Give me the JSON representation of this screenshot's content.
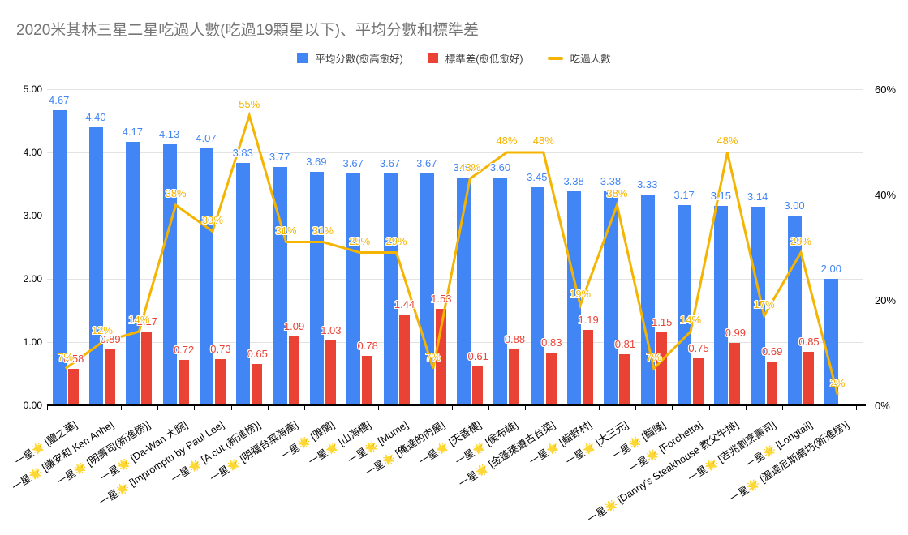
{
  "title": "2020米其林三星二星吃過人數(吃過19顆星以下)、平均分數和標準差",
  "legend": {
    "items": [
      {
        "label": "平均分數(愈高愈好)",
        "color": "#4285F4",
        "swatch": "square"
      },
      {
        "label": "標準差(愈低愈好)",
        "color": "#EA4335",
        "swatch": "square"
      },
      {
        "label": "吃過人數",
        "color": "#F4B400",
        "swatch": "line"
      }
    ]
  },
  "chart_data": {
    "type": "bar",
    "subtype": "combo-bar-line-dual-axis",
    "title": "2020米其林三星二星吃過人數(吃過19顆星以下)、平均分數和標準差",
    "grid": true,
    "legend_position": "top",
    "categories": [
      "一星🌟 [鹽之華]",
      "一星🌟 [謙安和 Ken Anhe]",
      "一星🌟 [明壽司(新進榜)]",
      "一星🌟 [Da-Wan 大腕]",
      "一星🌟 [Impromptu by Paul Lee]",
      "一星🌟 [A cut (新進榜)]",
      "一星🌟 [明福台菜海產]",
      "一星🌟 [雅閣]",
      "一星🌟 [山海樓]",
      "一星🌟 [Mume]",
      "一星🌟 [俺達的肉屋]",
      "一星🌟 [天香樓]",
      "一星🌟 [侯布雄]",
      "一星🌟 [金蓬萊遵古台菜]",
      "一星🌟 [鮨野村]",
      "一星🌟 [大三元]",
      "一星🌟 [鮨隆]",
      "一星🌟 [Forchetta]",
      "一星🌟 [Danny's Steakhouse 教父牛排]",
      "一星🌟 [吉兆割烹壽司]",
      "一星🌟 [Longtail]",
      "一星🌟 [渥達尼斯磨坊(新進榜)]"
    ],
    "series": [
      {
        "name": "平均分數(愈高愈好)",
        "type": "bar",
        "axis": "left",
        "color": "#4285F4",
        "values": [
          4.67,
          4.4,
          4.17,
          4.13,
          4.07,
          3.83,
          3.77,
          3.69,
          3.67,
          3.67,
          3.67,
          3.6,
          3.6,
          3.45,
          3.38,
          3.38,
          3.33,
          3.17,
          3.15,
          3.14,
          3.0,
          2.0
        ],
        "labels": [
          "4.67",
          "4.40",
          "4.17",
          "4.13",
          "4.07",
          "3.83",
          "3.77",
          "3.69",
          "3.67",
          "3.67",
          "3.67",
          "3.60",
          "3.60",
          "3.45",
          "3.38",
          "3.38",
          "3.33",
          "3.17",
          "3.15",
          "3.14",
          "3.00",
          "2.00"
        ]
      },
      {
        "name": "標準差(愈低愈好)",
        "type": "bar",
        "axis": "left",
        "color": "#EA4335",
        "values": [
          0.58,
          0.89,
          1.17,
          0.72,
          0.73,
          0.65,
          1.09,
          1.03,
          0.78,
          1.44,
          1.53,
          0.61,
          0.88,
          0.83,
          1.19,
          0.81,
          1.15,
          0.75,
          0.99,
          0.69,
          0.85,
          null
        ],
        "labels": [
          "0.58",
          "0.89",
          "1.17",
          "0.72",
          "0.73",
          "0.65",
          "1.09",
          "1.03",
          "0.78",
          "1.44",
          "1.53",
          "0.61",
          "0.88",
          "0.83",
          "1.19",
          "0.81",
          "1.15",
          "0.75",
          "0.99",
          "0.69",
          "0.85",
          ""
        ]
      },
      {
        "name": "吃過人數",
        "type": "line",
        "axis": "right",
        "color": "#F4B400",
        "values_percent": [
          7,
          12,
          14,
          38,
          33,
          55,
          31,
          31,
          29,
          29,
          7,
          43,
          48,
          48,
          19,
          38,
          7,
          14,
          48,
          17,
          29,
          2
        ],
        "labels": [
          "7%",
          "12%",
          "14%",
          "38%",
          "33%",
          "55%",
          "31%",
          "31%",
          "29%",
          "29%",
          "7%",
          "43%",
          "48%",
          "48%",
          "19%",
          "38%",
          "7%",
          "14%",
          "48%",
          "17%",
          "29%",
          "2%"
        ]
      }
    ],
    "left_axis": {
      "min": 0,
      "max": 5,
      "tick_labels": [
        "0.00",
        "1.00",
        "2.00",
        "3.00",
        "4.00",
        "5.00"
      ],
      "tick_values": [
        0,
        1,
        2,
        3,
        4,
        5
      ]
    },
    "right_axis": {
      "min": 0,
      "max": 60,
      "tick_labels": [
        "0%",
        "20%",
        "40%",
        "60%"
      ],
      "tick_values": [
        0,
        20,
        40,
        60
      ]
    }
  }
}
